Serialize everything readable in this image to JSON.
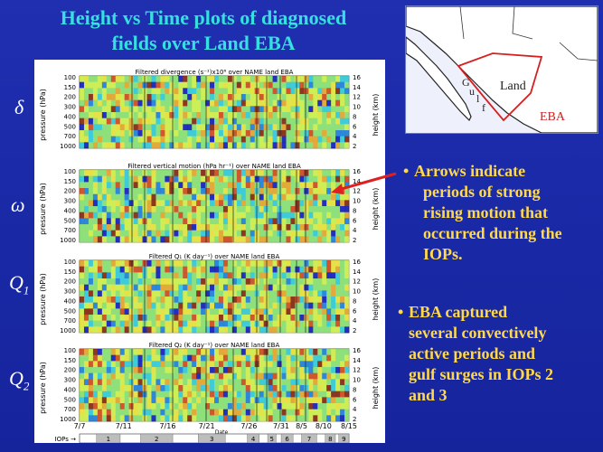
{
  "title": "Height vs Time plots of diagnosed fields over Land EBA",
  "title_line1": "Height vs Time plots of diagnosed",
  "title_line2": "fields over Land EBA",
  "row_labels": [
    "δ",
    "ω",
    "Q1",
    "Q2"
  ],
  "panels": [
    {
      "title": "Filtered divergence (s⁻¹)x10⁶ over NAME land EBA"
    },
    {
      "title": "Filtered vertical motion (hPa hr⁻¹) over NAME land EBA"
    },
    {
      "title": "Filtered Q₁ (K day⁻¹) over NAME land EBA"
    },
    {
      "title": "Filtered Q₂ (K day⁻¹) over NAME land EBA"
    }
  ],
  "axes": {
    "pressure_label": "pressure (hPa)",
    "height_label": "height (km)",
    "pressure_ticks": [
      "100",
      "150",
      "200",
      "300",
      "400",
      "500",
      "700",
      "1000"
    ],
    "height_ticks": [
      "16",
      "14",
      "12",
      "10",
      "8",
      "6",
      "4",
      "2"
    ],
    "date_label": "Date",
    "date_ticks": [
      "7/7",
      "7/11",
      "7/16",
      "7/21",
      "7/26",
      "7/31",
      "8/5",
      "8/10",
      "8/15"
    ],
    "iops_label": "IOPs →",
    "iops": [
      "1",
      "2",
      "3",
      "4",
      "5",
      "6",
      "7",
      "8",
      "9"
    ]
  },
  "map": {
    "labels": {
      "gulf_g": "G",
      "gulf_u": "u",
      "gulf_l": "l",
      "gulf_f": "f",
      "land": "Land",
      "eba": "EBA"
    },
    "colors": {
      "eba": "#d42020",
      "land": "#222222",
      "water": "#eef1fb"
    }
  },
  "bullets": [
    {
      "text_lines": [
        "Arrows indicate",
        "periods of strong",
        "rising motion that",
        "occurred during the",
        "IOPs."
      ]
    },
    {
      "text_lines": [
        "EBA captured",
        "several convectively",
        "active periods and",
        "gulf surges in IOPs 2",
        "and 3"
      ]
    }
  ],
  "bullet_symbol": "•",
  "colors": {
    "title": "#36e0e0",
    "bullet_text": "#ffd94a",
    "background": "#1c2ba8",
    "arrow": "#e02020"
  }
}
